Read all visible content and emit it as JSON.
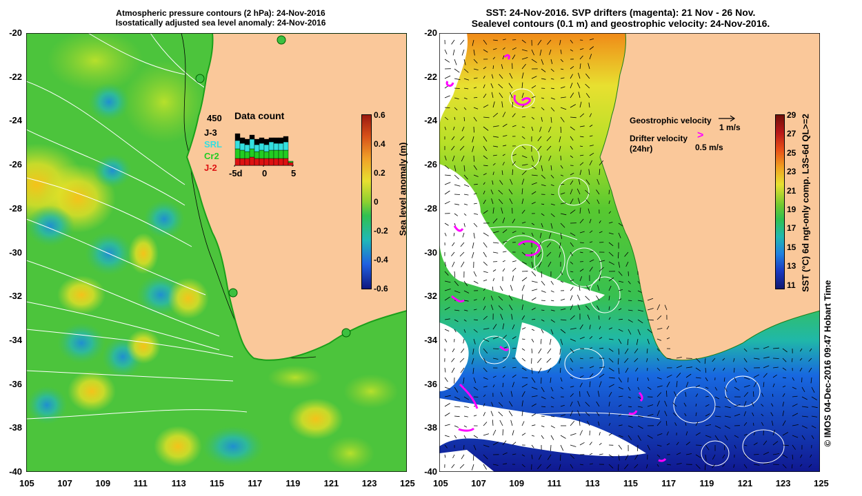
{
  "left_panel": {
    "title_line1": "Atmospheric pressure contours (2 hPa): 24-Nov-2016",
    "title_line2": "Isostatically adjusted sea level anomaly: 24-Nov-2016",
    "colorbar_label": "Sea level anomaly (m)",
    "colorbar_ticks": [
      "0.6",
      "0.4",
      "0.2",
      "0",
      "-0.2",
      "-0.4",
      "-0.6"
    ],
    "inset": {
      "title": "Data count",
      "max_label": "450",
      "legend": [
        {
          "label": "J-3",
          "color": "#000000"
        },
        {
          "label": "SRL",
          "color": "#33e0e0"
        },
        {
          "label": "Cr2",
          "color": "#22cc22"
        },
        {
          "label": "J-2",
          "color": "#dd1111"
        }
      ],
      "xticks": [
        "-5d",
        "0",
        "5"
      ]
    }
  },
  "right_panel": {
    "title_line1": "SST: 24-Nov-2016. SVP drifters (magenta): 21 Nov - 26 Nov.",
    "title_line2": "Sealevel contours (0.1 m) and geostrophic velocity: 24-Nov-2016.",
    "colorbar_label": "SST (°C) 6d ngt-only comp. L3S-6d QL>=2",
    "colorbar_ticks": [
      "29",
      "27",
      "25",
      "23",
      "21",
      "19",
      "17",
      "15",
      "13",
      "11"
    ],
    "geo_velocity_label": "Geostrophic velocity",
    "geo_velocity_scale": "1 m/s",
    "drifter_velocity_label": "Drifter velocity",
    "drifter_velocity_sub": "(24hr)",
    "drifter_velocity_scale": "0.5 m/s",
    "drifter_glyph": ">"
  },
  "axes": {
    "lat_ticks": [
      "-20",
      "-22",
      "-24",
      "-26",
      "-28",
      "-30",
      "-32",
      "-34",
      "-36",
      "-38",
      "-40"
    ],
    "lon_ticks": [
      "105",
      "107",
      "109",
      "111",
      "113",
      "115",
      "117",
      "119",
      "121",
      "123",
      "125"
    ]
  },
  "credit": "© IMOS 04-Dec-2016 09:47 Hobart Time",
  "colors": {
    "land": "#fac89a",
    "drifter": "#ff00ff",
    "contour": "#ffffff"
  }
}
